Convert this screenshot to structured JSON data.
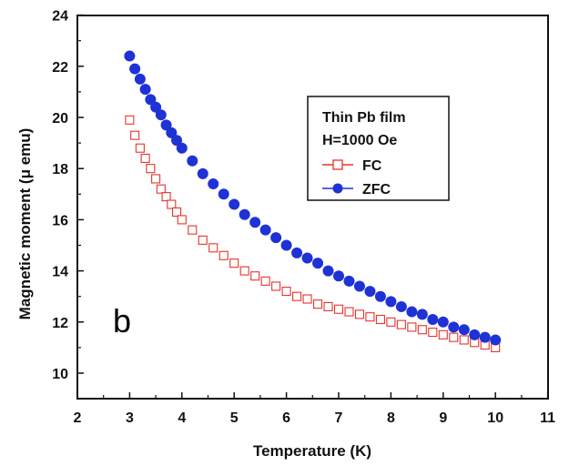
{
  "chart_data": {
    "type": "scatter",
    "title": "",
    "xlabel": "Temperature (K)",
    "ylabel": "Magnetic moment (μ emu)",
    "xlim": [
      2,
      11
    ],
    "ylim": [
      9.5,
      24
    ],
    "x_ticks": [
      2,
      3,
      4,
      5,
      6,
      7,
      8,
      9,
      10,
      11
    ],
    "y_ticks": [
      10,
      12,
      14,
      16,
      18,
      20,
      22,
      24
    ],
    "grid": false,
    "legend": {
      "placement": "upper-right",
      "title_lines": [
        "Thin Pb film",
        "H=1000 Oe"
      ]
    },
    "annotations": [
      {
        "text": "b"
      }
    ],
    "series": [
      {
        "name": "FC",
        "color": "#e8322d",
        "marker": "open-square",
        "x": [
          3.0,
          3.1,
          3.2,
          3.3,
          3.4,
          3.5,
          3.6,
          3.7,
          3.8,
          3.9,
          4.0,
          4.2,
          4.4,
          4.6,
          4.8,
          5.0,
          5.2,
          5.4,
          5.6,
          5.8,
          6.0,
          6.2,
          6.4,
          6.6,
          6.8,
          7.0,
          7.2,
          7.4,
          7.6,
          7.8,
          8.0,
          8.2,
          8.4,
          8.6,
          8.8,
          9.0,
          9.2,
          9.4,
          9.6,
          9.8,
          10.0
        ],
        "y": [
          19.9,
          19.3,
          18.8,
          18.4,
          18.0,
          17.6,
          17.2,
          16.9,
          16.6,
          16.3,
          16.0,
          15.6,
          15.2,
          14.9,
          14.6,
          14.3,
          14.0,
          13.8,
          13.6,
          13.4,
          13.2,
          13.0,
          12.9,
          12.7,
          12.6,
          12.5,
          12.4,
          12.3,
          12.2,
          12.1,
          12.0,
          11.9,
          11.8,
          11.7,
          11.6,
          11.5,
          11.4,
          11.3,
          11.2,
          11.1,
          11.0
        ]
      },
      {
        "name": "ZFC",
        "color": "#1f32d6",
        "marker": "filled-circle",
        "x": [
          3.0,
          3.1,
          3.2,
          3.3,
          3.4,
          3.5,
          3.6,
          3.7,
          3.8,
          3.9,
          4.0,
          4.2,
          4.4,
          4.6,
          4.8,
          5.0,
          5.2,
          5.4,
          5.6,
          5.8,
          6.0,
          6.2,
          6.4,
          6.6,
          6.8,
          7.0,
          7.2,
          7.4,
          7.6,
          7.8,
          8.0,
          8.2,
          8.4,
          8.6,
          8.8,
          9.0,
          9.2,
          9.4,
          9.6,
          9.8,
          10.0
        ],
        "y": [
          22.4,
          21.9,
          21.5,
          21.1,
          20.7,
          20.4,
          20.1,
          19.7,
          19.4,
          19.1,
          18.8,
          18.3,
          17.8,
          17.4,
          17.0,
          16.6,
          16.2,
          15.9,
          15.6,
          15.3,
          15.0,
          14.7,
          14.5,
          14.3,
          14.0,
          13.8,
          13.6,
          13.4,
          13.2,
          13.0,
          12.8,
          12.6,
          12.4,
          12.3,
          12.1,
          12.0,
          11.8,
          11.7,
          11.5,
          11.4,
          11.3
        ]
      }
    ]
  }
}
